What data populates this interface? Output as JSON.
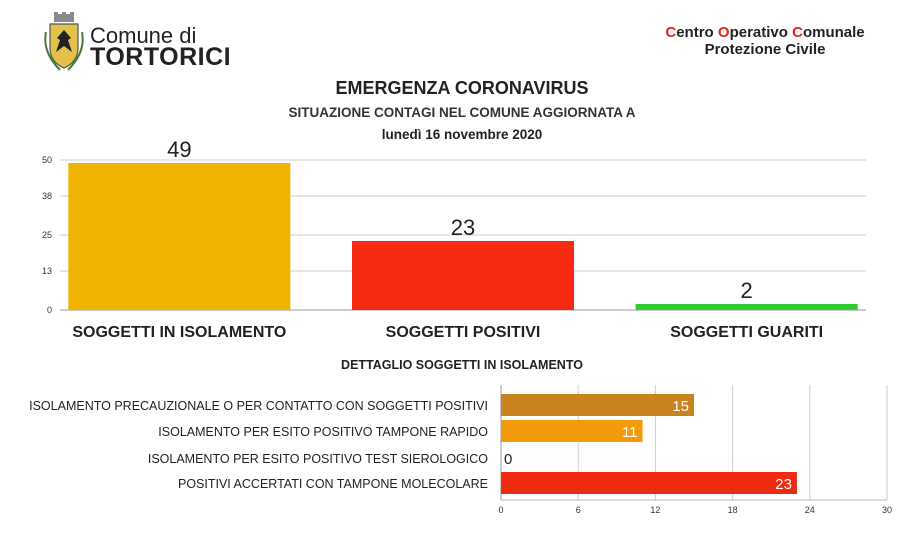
{
  "header": {
    "comune_prefix": "Comune di",
    "comune_name": "TORTORICI",
    "coc_line1_parts": [
      "C",
      "entro ",
      "O",
      "perativo ",
      "C",
      "omunale"
    ],
    "coc_line2": "Protezione Civile"
  },
  "title": "EMERGENZA CORONAVIRUS",
  "subtitle": "SITUAZIONE CONTAGI NEL COMUNE AGGIORNATA A",
  "date": "lunedì 16 novembre 2020",
  "detail_title": "DETTAGLIO SOGGETTI IN ISOLAMENTO",
  "colors": {
    "accent_red": "#e8201a",
    "isolamento": "#f0b400",
    "positivi": "#f52a10",
    "guariti": "#2ecc2e",
    "precauzionale": "#c8821e",
    "tampone_rapido": "#f39a0a",
    "sierologico": "#f5b000",
    "molecolare": "#ee2a10",
    "grid": "#cccccc"
  },
  "chart_data": [
    {
      "type": "bar",
      "orientation": "vertical",
      "categories": [
        "SOGGETTI IN ISOLAMENTO",
        "SOGGETTI POSITIVI",
        "SOGGETTI GUARITI"
      ],
      "values": [
        49,
        23,
        2
      ],
      "data_labels": [
        "49",
        "23",
        "2"
      ],
      "yticks": [
        "0",
        "13",
        "25",
        "38",
        "50"
      ],
      "ylim": [
        0,
        50
      ],
      "grid": true
    },
    {
      "type": "bar",
      "orientation": "horizontal",
      "title": "DETTAGLIO SOGGETTI IN ISOLAMENTO",
      "categories": [
        "ISOLAMENTO PRECAUZIONALE O PER CONTATTO CON SOGGETTI POSITIVI",
        "ISOLAMENTO PER ESITO POSITIVO TAMPONE RAPIDO",
        "ISOLAMENTO PER ESITO POSITIVO TEST SIEROLOGICO",
        "POSITIVI ACCERTATI CON TAMPONE MOLECOLARE"
      ],
      "values": [
        15,
        11,
        0,
        23
      ],
      "data_labels": [
        "15",
        "11",
        "0",
        "23"
      ],
      "xticks": [
        "0",
        "6",
        "12",
        "18",
        "24",
        "30"
      ],
      "xlim": [
        0,
        30
      ],
      "grid": true
    }
  ]
}
